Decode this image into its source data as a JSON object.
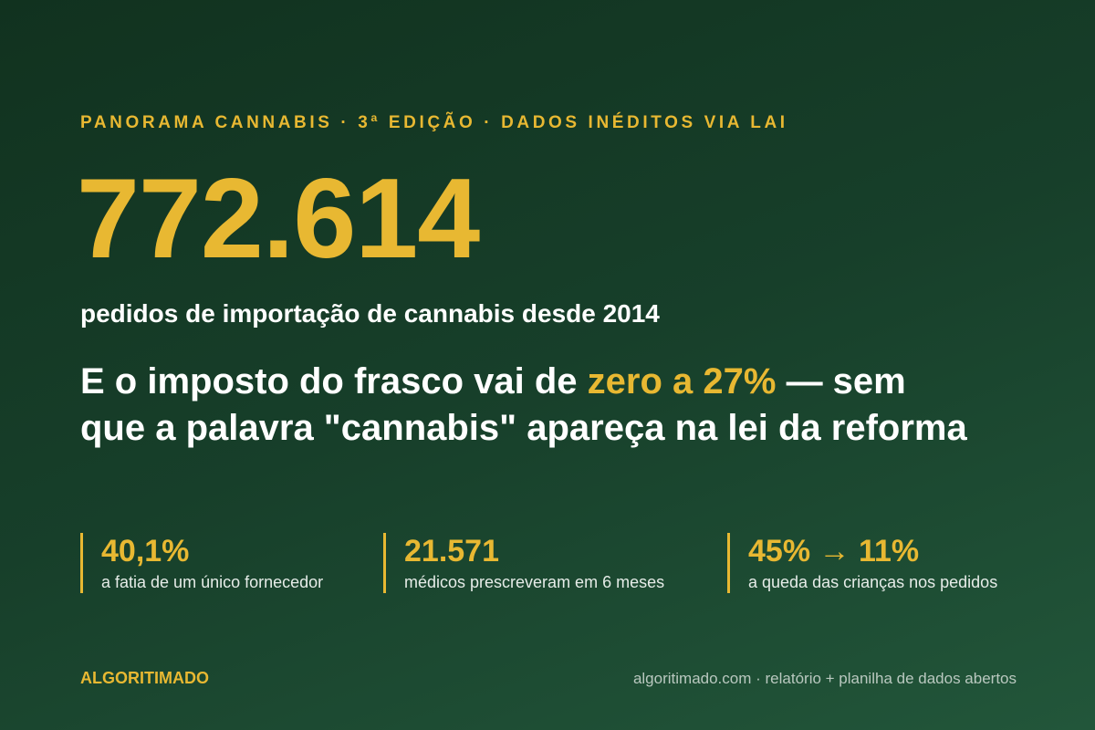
{
  "kicker": "PANORAMA CANNABIS · 3ª EDIÇÃO · DADOS INÉDITOS VIA LAI",
  "hero": {
    "number": "772.614",
    "caption": "pedidos de importação de cannabis desde 2014"
  },
  "headline": {
    "before": "E o imposto do frasco vai de ",
    "highlight": "zero a 27%",
    "after": " — sem que a palavra \"cannabis\" apareça na lei da reforma"
  },
  "stats": [
    {
      "value": "40,1%",
      "label": "a fatia de um único fornecedor"
    },
    {
      "value": "21.571",
      "label": "médicos prescreveram em 6 meses"
    },
    {
      "value": "45% → 11%",
      "label": "a queda das crianças nos pedidos"
    }
  ],
  "footer": {
    "brand": "ALGORITIMADO",
    "note": "algoritimado.com · relatório + planilha de dados abertos"
  }
}
